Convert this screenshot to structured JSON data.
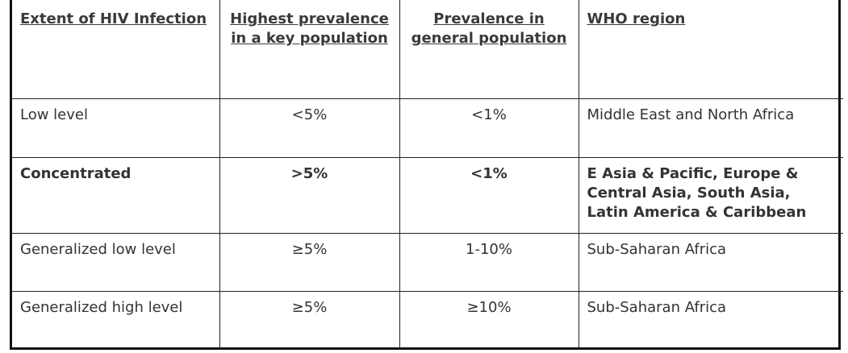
{
  "table": {
    "headers": [
      "Extent of HIV Infection",
      "Highest prevalence in a key population",
      "Prevalence in general population",
      "WHO region"
    ],
    "rows": [
      [
        "Low level",
        "<5%",
        "<1%",
        "Middle East and North Africa"
      ],
      [
        "Concentrated",
        ">5%",
        "<1%",
        "E Asia & Pacific, Europe & Central Asia, South Asia, Latin America & Caribbean"
      ],
      [
        "Generalized low level",
        "≥5%",
        "1-10%",
        "Sub-Saharan Africa"
      ],
      [
        "Generalized high level",
        "≥5%",
        "≥10%",
        "Sub-Saharan Africa"
      ]
    ]
  }
}
